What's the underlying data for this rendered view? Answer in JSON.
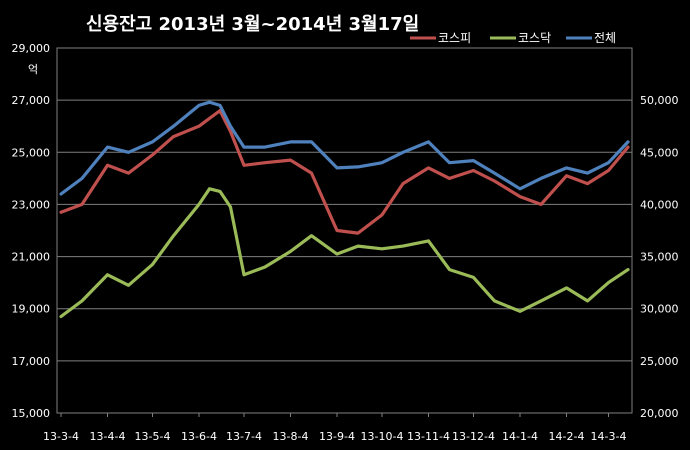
{
  "chart_data": {
    "type": "line",
    "title": "신용잔고 2013년 3월~2014년 3월17일",
    "y_left_unit": "억",
    "y_left": {
      "min": 15000,
      "max": 29000,
      "ticks": [
        "15,000",
        "17,000",
        "19,000",
        "21,000",
        "23,000",
        "25,000",
        "27,000",
        "29,000"
      ]
    },
    "y_right": {
      "min": 20000,
      "max": 55000,
      "ticks": [
        "20,000",
        "25,000",
        "30,000",
        "35,000",
        "40,000",
        "45,000",
        "50,000"
      ]
    },
    "x_ticks": [
      "13-3-4",
      "13-4-4",
      "13-5-4",
      "13-6-4",
      "13-7-4",
      "13-8-4",
      "13-9-4",
      "13-10-4",
      "13-11-4",
      "13-12-4",
      "14-1-4",
      "14-2-4",
      "14-3-4"
    ],
    "x": [
      "13-3-4",
      "13-3-18",
      "13-4-4",
      "13-4-18",
      "13-5-4",
      "13-5-18",
      "13-6-4",
      "13-6-11",
      "13-6-18",
      "13-6-25",
      "13-7-4",
      "13-7-18",
      "13-8-4",
      "13-8-18",
      "13-9-4",
      "13-9-18",
      "13-10-4",
      "13-10-18",
      "13-11-4",
      "13-11-18",
      "13-12-4",
      "13-12-18",
      "14-1-4",
      "14-1-18",
      "14-2-4",
      "14-2-18",
      "14-3-4",
      "14-3-17"
    ],
    "grid": true,
    "legend_position": "top-right",
    "series": [
      {
        "name": "코스피",
        "axis": "left",
        "color": "#c0504d",
        "values": [
          22700,
          23000,
          24500,
          24200,
          24900,
          25600,
          26000,
          26300,
          26600,
          25800,
          24500,
          24600,
          24700,
          24200,
          22000,
          21900,
          22600,
          23800,
          24400,
          24000,
          24300,
          23900,
          23300,
          23000,
          24100,
          23800,
          24300,
          25200
        ]
      },
      {
        "name": "코스닥",
        "axis": "left",
        "color": "#9bbb59",
        "values": [
          18700,
          19300,
          20300,
          19900,
          20700,
          21800,
          23000,
          23600,
          23500,
          22900,
          20300,
          20600,
          21200,
          21800,
          21100,
          21400,
          21300,
          21400,
          21600,
          20500,
          20200,
          19300,
          18900,
          19300,
          19800,
          19300,
          20000,
          20500
        ]
      },
      {
        "name": "전체",
        "axis": "right",
        "color": "#4f81bd",
        "values": [
          41000,
          42500,
          45500,
          45000,
          46000,
          47500,
          49500,
          49800,
          49500,
          47500,
          45500,
          45500,
          46000,
          46000,
          43500,
          43600,
          44000,
          45000,
          46000,
          44000,
          44200,
          43000,
          41500,
          42500,
          43500,
          43000,
          44000,
          46000
        ]
      }
    ]
  }
}
